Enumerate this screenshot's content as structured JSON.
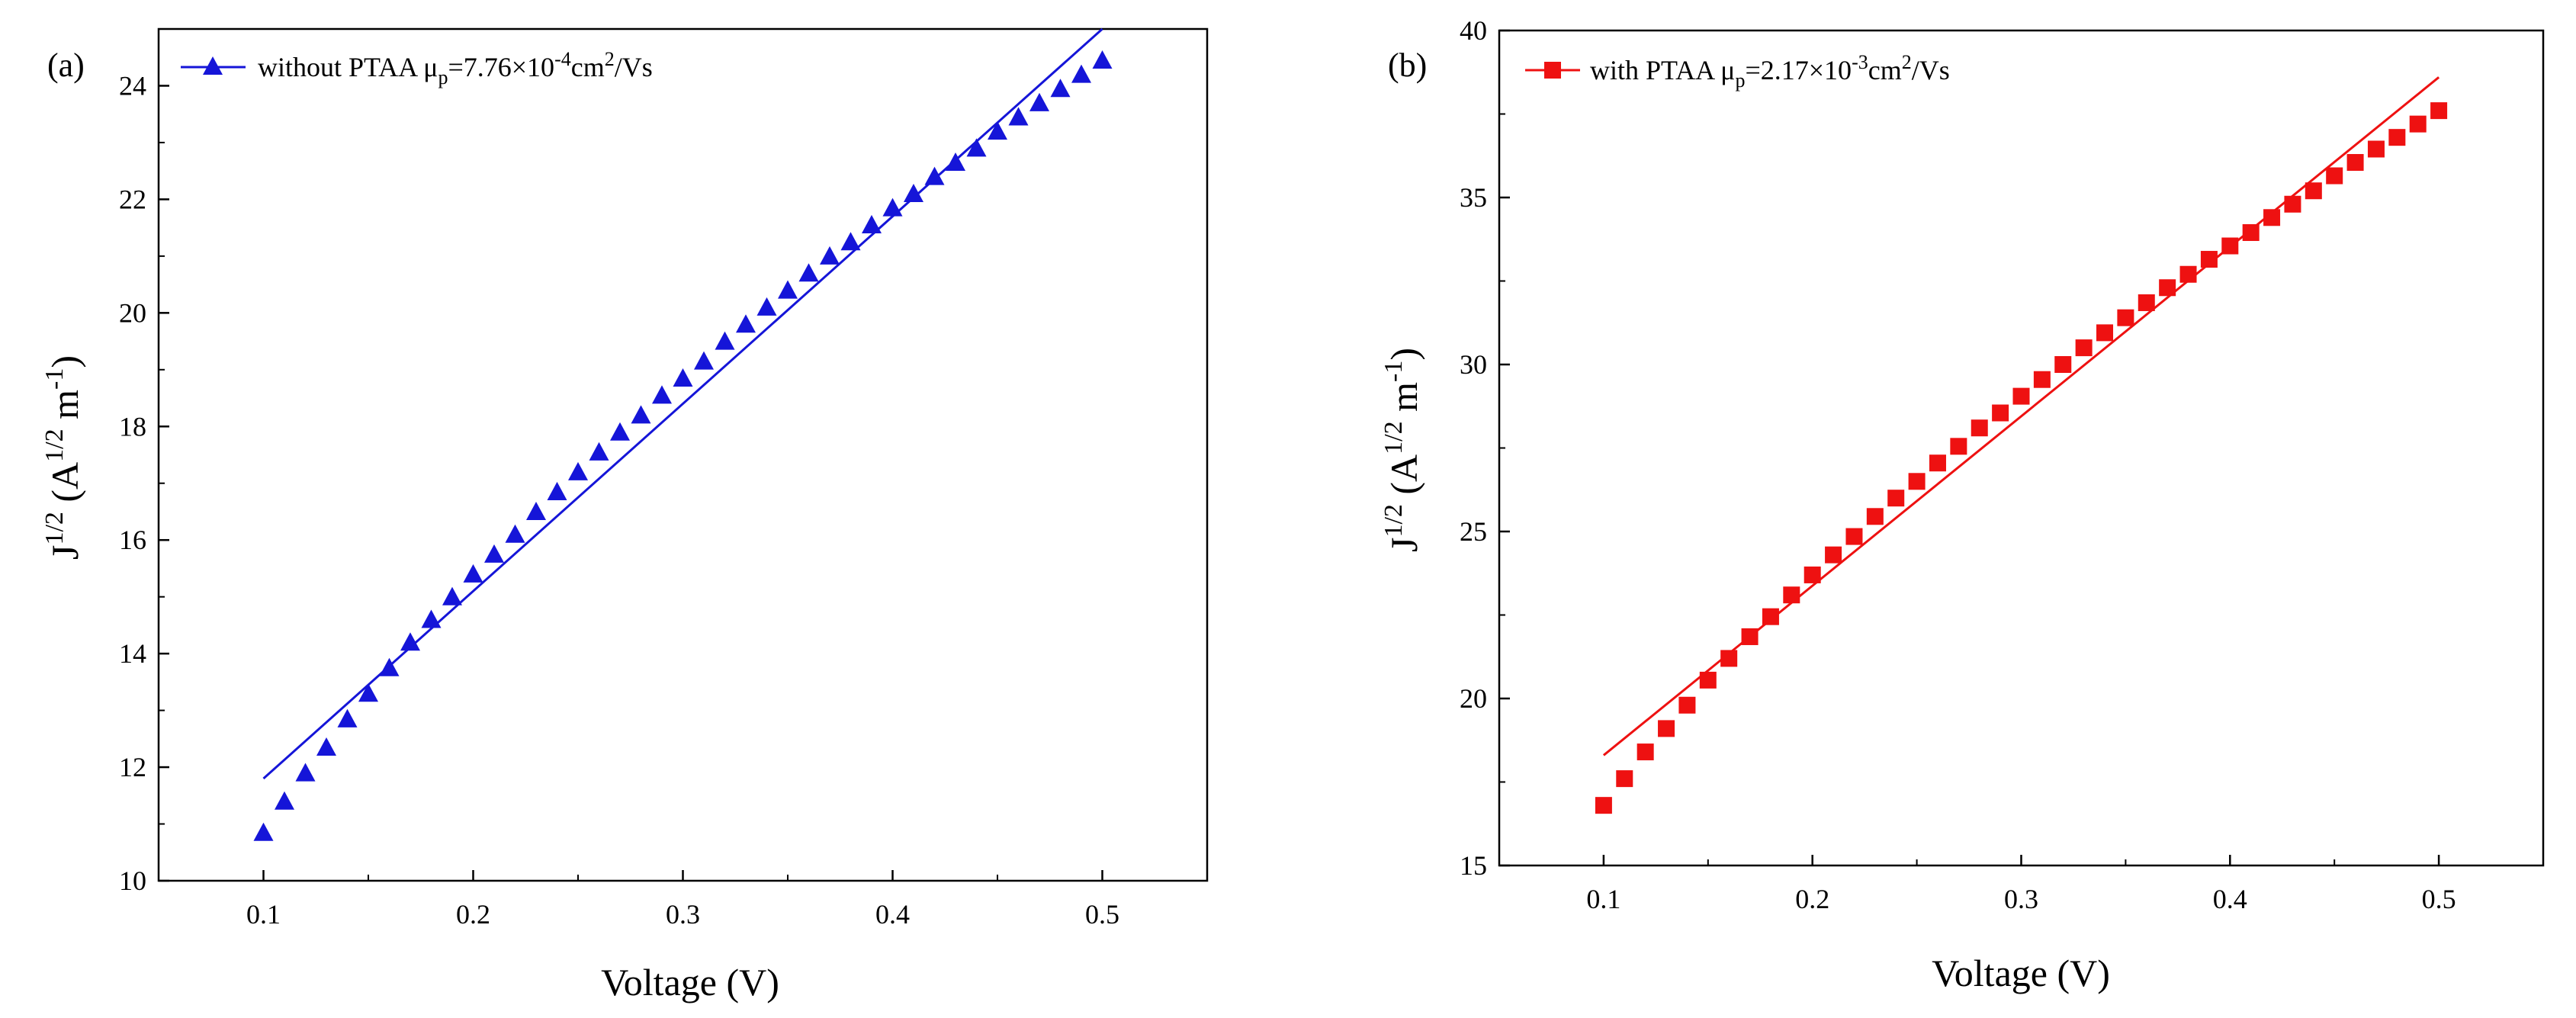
{
  "chart_data": [
    {
      "type": "scatter",
      "panel_label": "(a)",
      "xlabel": "Voltage (V)",
      "ylabel": "J1/2 (A1/2 m-1)",
      "ylabel_parts": {
        "base": "J",
        "sup1": "1/2",
        "open": " (A",
        "sup2": "1/2",
        "mid": " m",
        "sup3": "-1",
        "close": ")"
      },
      "xlim": [
        0.05,
        0.55
      ],
      "ylim": [
        10,
        25
      ],
      "xticks": [
        0.1,
        0.2,
        0.3,
        0.4,
        0.5
      ],
      "xtick_labels": [
        "0.1",
        "0.2",
        "0.3",
        "0.4",
        "0.5"
      ],
      "yticks": [
        10,
        12,
        14,
        16,
        18,
        20,
        22,
        24
      ],
      "ytick_labels": [
        "10",
        "12",
        "14",
        "16",
        "18",
        "20",
        "22",
        "24"
      ],
      "legend": {
        "text": "without PTAA μp=7.76×10-4cm2/Vs",
        "parts": {
          "a": "without PTAA  μ",
          "sub": "p",
          "b": "=7.76×10",
          "sup1": "-4",
          "c": "cm",
          "sup2": "2",
          "d": "/Vs"
        },
        "position": "top-left"
      },
      "color": "#1515d8",
      "marker": "triangle",
      "series": [
        {
          "name": "measured",
          "x": [
            0.1,
            0.11,
            0.12,
            0.13,
            0.14,
            0.15,
            0.16,
            0.17,
            0.18,
            0.19,
            0.2,
            0.21,
            0.22,
            0.23,
            0.24,
            0.25,
            0.26,
            0.27,
            0.28,
            0.29,
            0.3,
            0.31,
            0.32,
            0.33,
            0.34,
            0.35,
            0.36,
            0.37,
            0.38,
            0.39,
            0.4,
            0.41,
            0.42,
            0.43,
            0.44,
            0.45,
            0.46,
            0.47,
            0.48,
            0.49,
            0.5
          ],
          "y": [
            10.85,
            11.4,
            11.9,
            12.35,
            12.85,
            13.3,
            13.75,
            14.2,
            14.6,
            15.0,
            15.4,
            15.75,
            16.1,
            16.5,
            16.85,
            17.2,
            17.55,
            17.9,
            18.2,
            18.55,
            18.85,
            19.15,
            19.5,
            19.8,
            20.1,
            20.4,
            20.7,
            21.0,
            21.25,
            21.55,
            21.85,
            22.1,
            22.4,
            22.65,
            22.9,
            23.2,
            23.45,
            23.7,
            23.95,
            24.2,
            24.45
          ]
        },
        {
          "name": "fit",
          "x": [
            0.1,
            0.5
          ],
          "y": [
            11.8,
            25.0
          ]
        }
      ]
    },
    {
      "type": "scatter",
      "panel_label": "(b)",
      "xlabel": "Voltage (V)",
      "ylabel": "J1/2 (A1/2 m-1)",
      "ylabel_parts": {
        "base": "J",
        "sup1": "1/2",
        "open": " (A",
        "sup2": "1/2",
        "mid": " m",
        "sup3": "-1",
        "close": ")"
      },
      "xlim": [
        0.05,
        0.55
      ],
      "ylim": [
        15,
        40
      ],
      "xticks": [
        0.1,
        0.2,
        0.3,
        0.4,
        0.5
      ],
      "xtick_labels": [
        "0.1",
        "0.2",
        "0.3",
        "0.4",
        "0.5"
      ],
      "yticks": [
        15,
        20,
        25,
        30,
        35,
        40
      ],
      "ytick_labels": [
        "15",
        "20",
        "25",
        "30",
        "35",
        "40"
      ],
      "legend": {
        "text": "with PTAA μp=2.17×10-3cm2/Vs",
        "parts": {
          "a": "with PTAA  μ",
          "sub": "p",
          "b": "=2.17×10",
          "sup1": "-3",
          "c": "cm",
          "sup2": "2",
          "d": "/Vs"
        },
        "position": "top-left"
      },
      "color": "#ee1111",
      "marker": "square",
      "series": [
        {
          "name": "measured",
          "x": [
            0.1,
            0.11,
            0.12,
            0.13,
            0.14,
            0.15,
            0.16,
            0.17,
            0.18,
            0.19,
            0.2,
            0.21,
            0.22,
            0.23,
            0.24,
            0.25,
            0.26,
            0.27,
            0.28,
            0.29,
            0.3,
            0.31,
            0.32,
            0.33,
            0.34,
            0.35,
            0.36,
            0.37,
            0.38,
            0.39,
            0.4,
            0.41,
            0.42,
            0.43,
            0.44,
            0.45,
            0.46,
            0.47,
            0.48,
            0.49,
            0.5
          ],
          "y": [
            16.8,
            17.6,
            18.4,
            19.1,
            19.8,
            20.55,
            21.2,
            21.85,
            22.45,
            23.1,
            23.7,
            24.3,
            24.85,
            25.45,
            26.0,
            26.5,
            27.05,
            27.55,
            28.1,
            28.55,
            29.05,
            29.55,
            30.0,
            30.5,
            30.95,
            31.4,
            31.85,
            32.3,
            32.7,
            33.15,
            33.55,
            33.95,
            34.4,
            34.8,
            35.2,
            35.65,
            36.05,
            36.45,
            36.8,
            37.2,
            37.6
          ]
        },
        {
          "name": "fit",
          "x": [
            0.1,
            0.5
          ],
          "y": [
            18.3,
            38.6
          ]
        }
      ]
    }
  ]
}
